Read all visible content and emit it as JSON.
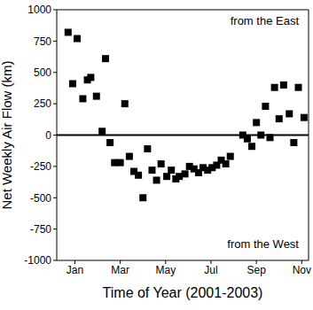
{
  "chart_data": {
    "type": "scatter",
    "x_label": "Time of Year (2001-2003)",
    "y_label": "Net Weekly Air Flow (km)",
    "annotations": [
      "from the East",
      "from the West"
    ],
    "baseline": 0,
    "color": "#000000",
    "marker": "square",
    "xlim": [
      0.2,
      11.3
    ],
    "xticks": [
      {
        "value": 1,
        "label": "Jan"
      },
      {
        "value": 3,
        "label": "Mar"
      },
      {
        "value": 5,
        "label": "May"
      },
      {
        "value": 7,
        "label": "Jul"
      },
      {
        "value": 9,
        "label": "Sep"
      },
      {
        "value": 11,
        "label": "Nov"
      }
    ],
    "ylim": [
      -1000,
      1000
    ],
    "yticks": [
      -1000,
      -750,
      -500,
      -250,
      0,
      250,
      500,
      750,
      1000
    ],
    "x": [
      0.7,
      0.9,
      1.1,
      1.35,
      1.55,
      1.7,
      1.95,
      2.2,
      2.35,
      2.55,
      2.75,
      3.0,
      3.2,
      3.4,
      3.6,
      3.8,
      4.0,
      4.2,
      4.4,
      4.6,
      4.8,
      5.05,
      5.25,
      5.45,
      5.6,
      5.85,
      6.05,
      6.25,
      6.45,
      6.65,
      6.85,
      7.05,
      7.25,
      7.45,
      7.65,
      7.85,
      8.4,
      8.6,
      8.8,
      9.0,
      9.2,
      9.4,
      9.6,
      9.8,
      10.0,
      10.2,
      10.45,
      10.65,
      10.85,
      11.1
    ],
    "values": [
      820,
      410,
      770,
      290,
      440,
      460,
      310,
      30,
      610,
      -60,
      -220,
      -220,
      250,
      -170,
      -290,
      -320,
      -500,
      -110,
      -280,
      -360,
      -230,
      -330,
      -280,
      -350,
      -330,
      -310,
      -250,
      -270,
      -300,
      -260,
      -280,
      -260,
      -240,
      -200,
      -230,
      -170,
      0,
      -30,
      -90,
      100,
      0,
      230,
      -20,
      380,
      130,
      400,
      170,
      -60,
      380,
      140
    ]
  }
}
